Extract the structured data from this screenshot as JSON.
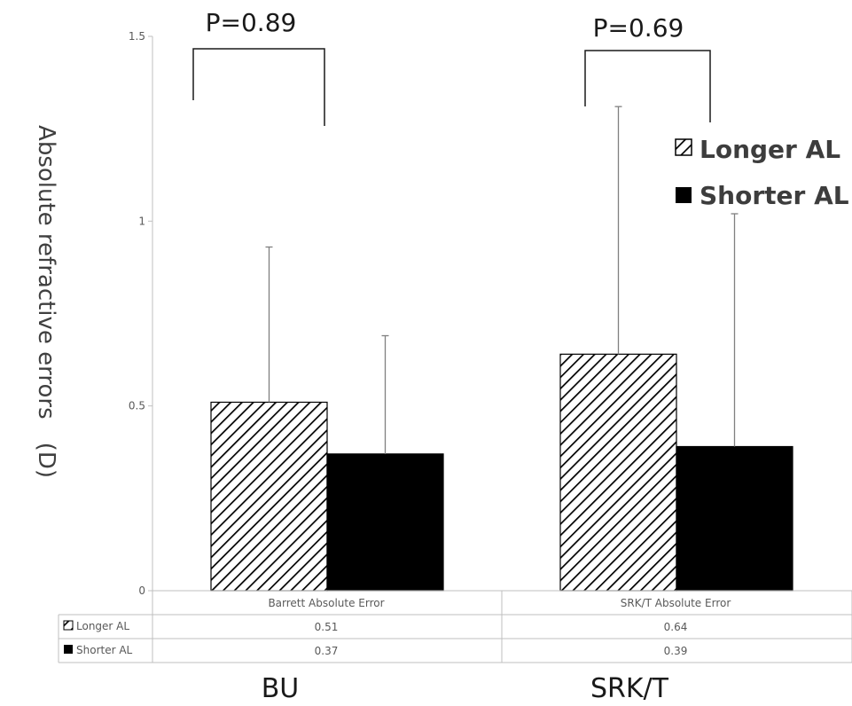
{
  "chart_data": {
    "type": "bar",
    "categories": [
      "Barrett Absolute Error",
      "SRK/T Absolute Error"
    ],
    "series": [
      {
        "name": "Longer AL",
        "values": [
          0.51,
          0.64
        ],
        "sd_upper": [
          0.93,
          1.31
        ],
        "pattern": "diagonal-hatch"
      },
      {
        "name": "Shorter AL",
        "values": [
          0.37,
          0.39
        ],
        "sd_upper": [
          0.69,
          1.02
        ],
        "pattern": "solid-black"
      }
    ],
    "ylabel": "Absolute refractive errors　(D)",
    "ylim": [
      0,
      1.5
    ],
    "yticks": [
      "0",
      "0.5",
      "1",
      "1.5"
    ],
    "ytick_values": [
      0,
      0.5,
      1,
      1.5
    ],
    "annotations": [
      "P=0.89",
      "P=0.69"
    ],
    "group_labels": [
      "BU",
      "SRK/T"
    ],
    "table_rows": [
      {
        "label": "Longer AL",
        "cells": [
          "0.51",
          "0.64"
        ]
      },
      {
        "label": "Shorter AL",
        "cells": [
          "0.37",
          "0.39"
        ]
      }
    ],
    "legend": [
      "Longer AL",
      "Shorter AL"
    ],
    "legend_position": "top-right",
    "grid": false,
    "colors": {
      "bar_fill_dark": "#000000",
      "hatch": "#000000",
      "axis": "#bfbfbf",
      "error_bar": "#808080"
    }
  }
}
